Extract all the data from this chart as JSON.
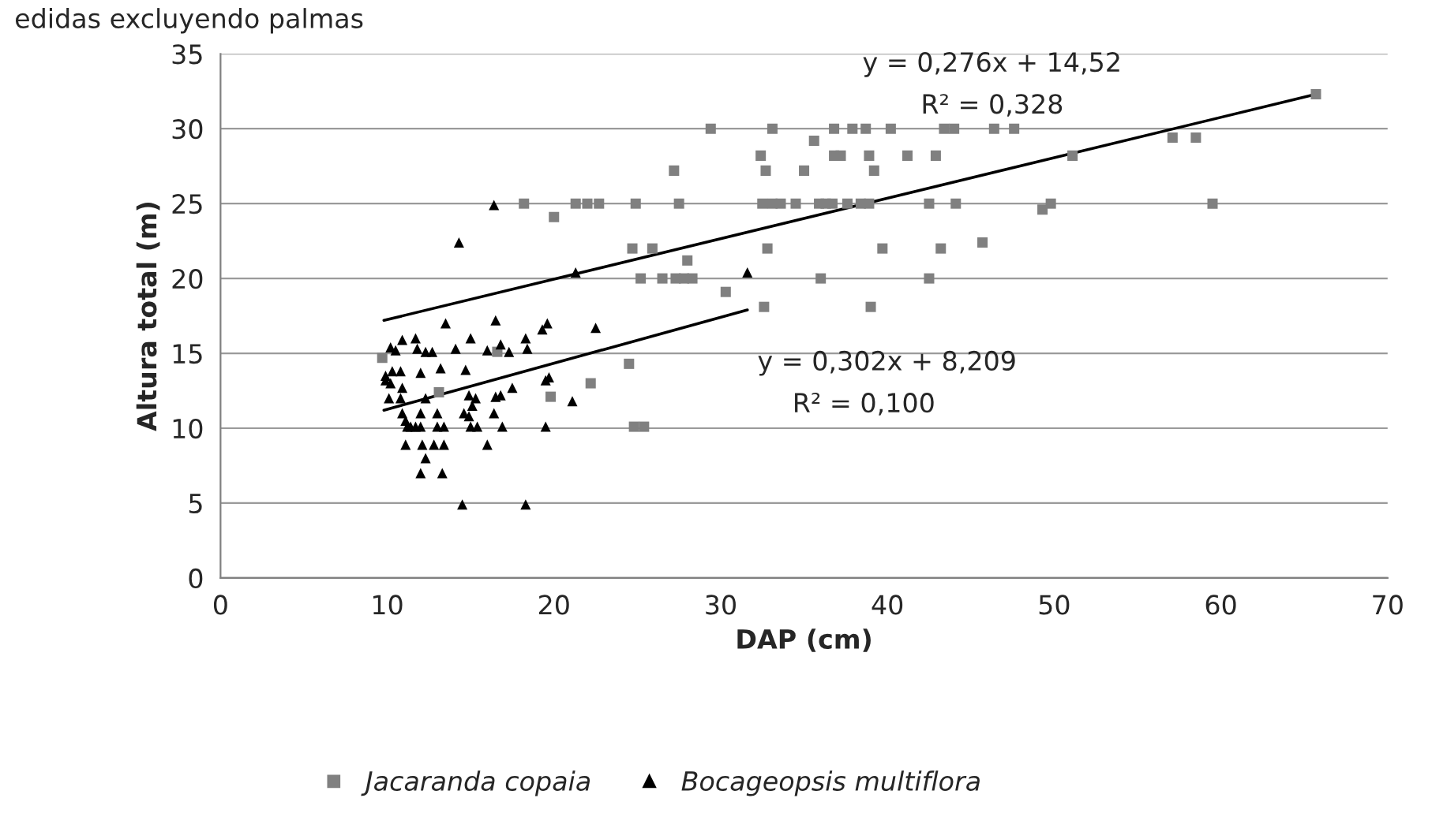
{
  "chart_data": {
    "type": "scatter",
    "title": "edidas excluyendo palmas",
    "xlabel": "DAP (cm)",
    "ylabel": "Altura total (m)",
    "xlim": [
      0,
      70
    ],
    "xticks": [
      0,
      10,
      20,
      30,
      40,
      50,
      60,
      70
    ],
    "ylim": [
      0,
      35
    ],
    "yticks": [
      0,
      5,
      10,
      15,
      20,
      25,
      30,
      35
    ],
    "grid": "y",
    "legend": "bottom",
    "annotations": [
      "y = 0,276x + 14,52",
      "R² = 0,328",
      "y = 0,302x + 8,209",
      "R² = 0,100"
    ],
    "series": [
      {
        "name": "Jacaranda copaia",
        "marker": "square",
        "color": "#808080",
        "x": [
          29.4,
          33.1,
          36.8,
          37.9,
          38.7,
          40.2,
          43.4,
          44.0,
          46.4,
          47.6,
          35.6,
          32.4,
          36.8,
          37.2,
          38.9,
          41.2,
          42.9,
          51.1,
          27.2,
          32.7,
          35.0,
          39.2,
          57.1,
          58.5,
          65.7,
          18.2,
          21.3,
          22.0,
          22.7,
          24.9,
          27.5,
          32.5,
          33.1,
          33.6,
          34.5,
          35.9,
          36.3,
          36.7,
          37.6,
          38.4,
          38.9,
          42.5,
          44.1,
          49.3,
          49.8,
          59.5,
          20.0,
          24.7,
          25.9,
          32.8,
          39.7,
          43.2,
          45.7,
          28.0,
          25.2,
          26.5,
          27.3,
          27.8,
          28.3,
          36.0,
          42.5,
          30.3,
          32.6,
          39.0,
          9.7,
          16.6,
          13.1,
          19.8,
          22.2,
          24.5,
          24.8,
          25.4
        ],
        "values": [
          30,
          30,
          30,
          30,
          30,
          30,
          30,
          30,
          30,
          30,
          29.2,
          28.2,
          28.2,
          28.2,
          28.2,
          28.2,
          28.2,
          28.2,
          27.2,
          27.2,
          27.2,
          27.2,
          29.4,
          29.4,
          32.3,
          25,
          25,
          25,
          25,
          25,
          25,
          25,
          25,
          25,
          25,
          25,
          25,
          25,
          25,
          25,
          25,
          25,
          25,
          24.6,
          25,
          25,
          24.1,
          22.0,
          22.0,
          22.0,
          22.0,
          22.0,
          22.4,
          21.2,
          20,
          20,
          20,
          20,
          20,
          20,
          20,
          19.1,
          18.1,
          18.1,
          14.7,
          15.1,
          12.4,
          12.1,
          13.0,
          14.3,
          10.1,
          10.1
        ]
      },
      {
        "name": "Bocageopsis multiflora",
        "marker": "triangle",
        "color": "#000000",
        "x": [
          21.3,
          13.5,
          16.5,
          19.6,
          19.3,
          22.5,
          10.9,
          11.7,
          10.2,
          10.5,
          11.8,
          12.3,
          12.7,
          14.1,
          15.0,
          16.0,
          16.8,
          17.3,
          18.3,
          18.4,
          9.9,
          10.3,
          10.8,
          10.2,
          10.9,
          12.0,
          13.2,
          14.7,
          10.1,
          10.8,
          12.3,
          14.9,
          15.3,
          16.5,
          16.8,
          17.5,
          19.5,
          19.7,
          21.1,
          10.9,
          12.0,
          13.0,
          14.6,
          14.9,
          15.1,
          16.4,
          11.1,
          11.2,
          11.4,
          11.7,
          12.0,
          13.0,
          13.4,
          15.0,
          15.4,
          16.9,
          19.5,
          11.1,
          12.1,
          12.8,
          13.4,
          16.0,
          12.3,
          12.0,
          13.3,
          14.5,
          18.3,
          16.4,
          14.3,
          31.6,
          9.9
        ],
        "values": [
          20.4,
          17.0,
          17.2,
          17.0,
          16.6,
          16.7,
          15.9,
          16.0,
          15.4,
          15.2,
          15.3,
          15.1,
          15.1,
          15.3,
          16.0,
          15.2,
          15.6,
          15.1,
          16.0,
          15.3,
          13.2,
          13.8,
          13.8,
          13.0,
          12.7,
          13.7,
          14.0,
          13.9,
          12.0,
          12.0,
          12.0,
          12.2,
          12.0,
          12.1,
          12.2,
          12.7,
          13.2,
          13.4,
          11.8,
          11.0,
          11.0,
          11.0,
          11.0,
          10.8,
          11.5,
          11.0,
          10.5,
          10.1,
          10.1,
          10.1,
          10.1,
          10.1,
          10.1,
          10.1,
          10.1,
          10.1,
          10.1,
          8.9,
          8.9,
          8.9,
          8.9,
          8.9,
          8.0,
          7.0,
          7.0,
          4.9,
          4.9,
          24.9,
          22.4,
          20.4,
          13.5
        ]
      },
      {
        "type": "line",
        "color": "#000000",
        "line_style": "solid",
        "x": [
          9.8,
          65.7
        ],
        "values": [
          17.2,
          32.3
        ]
      },
      {
        "type": "line",
        "color": "#000000",
        "line_style": "solid",
        "x": [
          9.8,
          31.6
        ],
        "values": [
          11.2,
          17.9
        ]
      }
    ]
  }
}
